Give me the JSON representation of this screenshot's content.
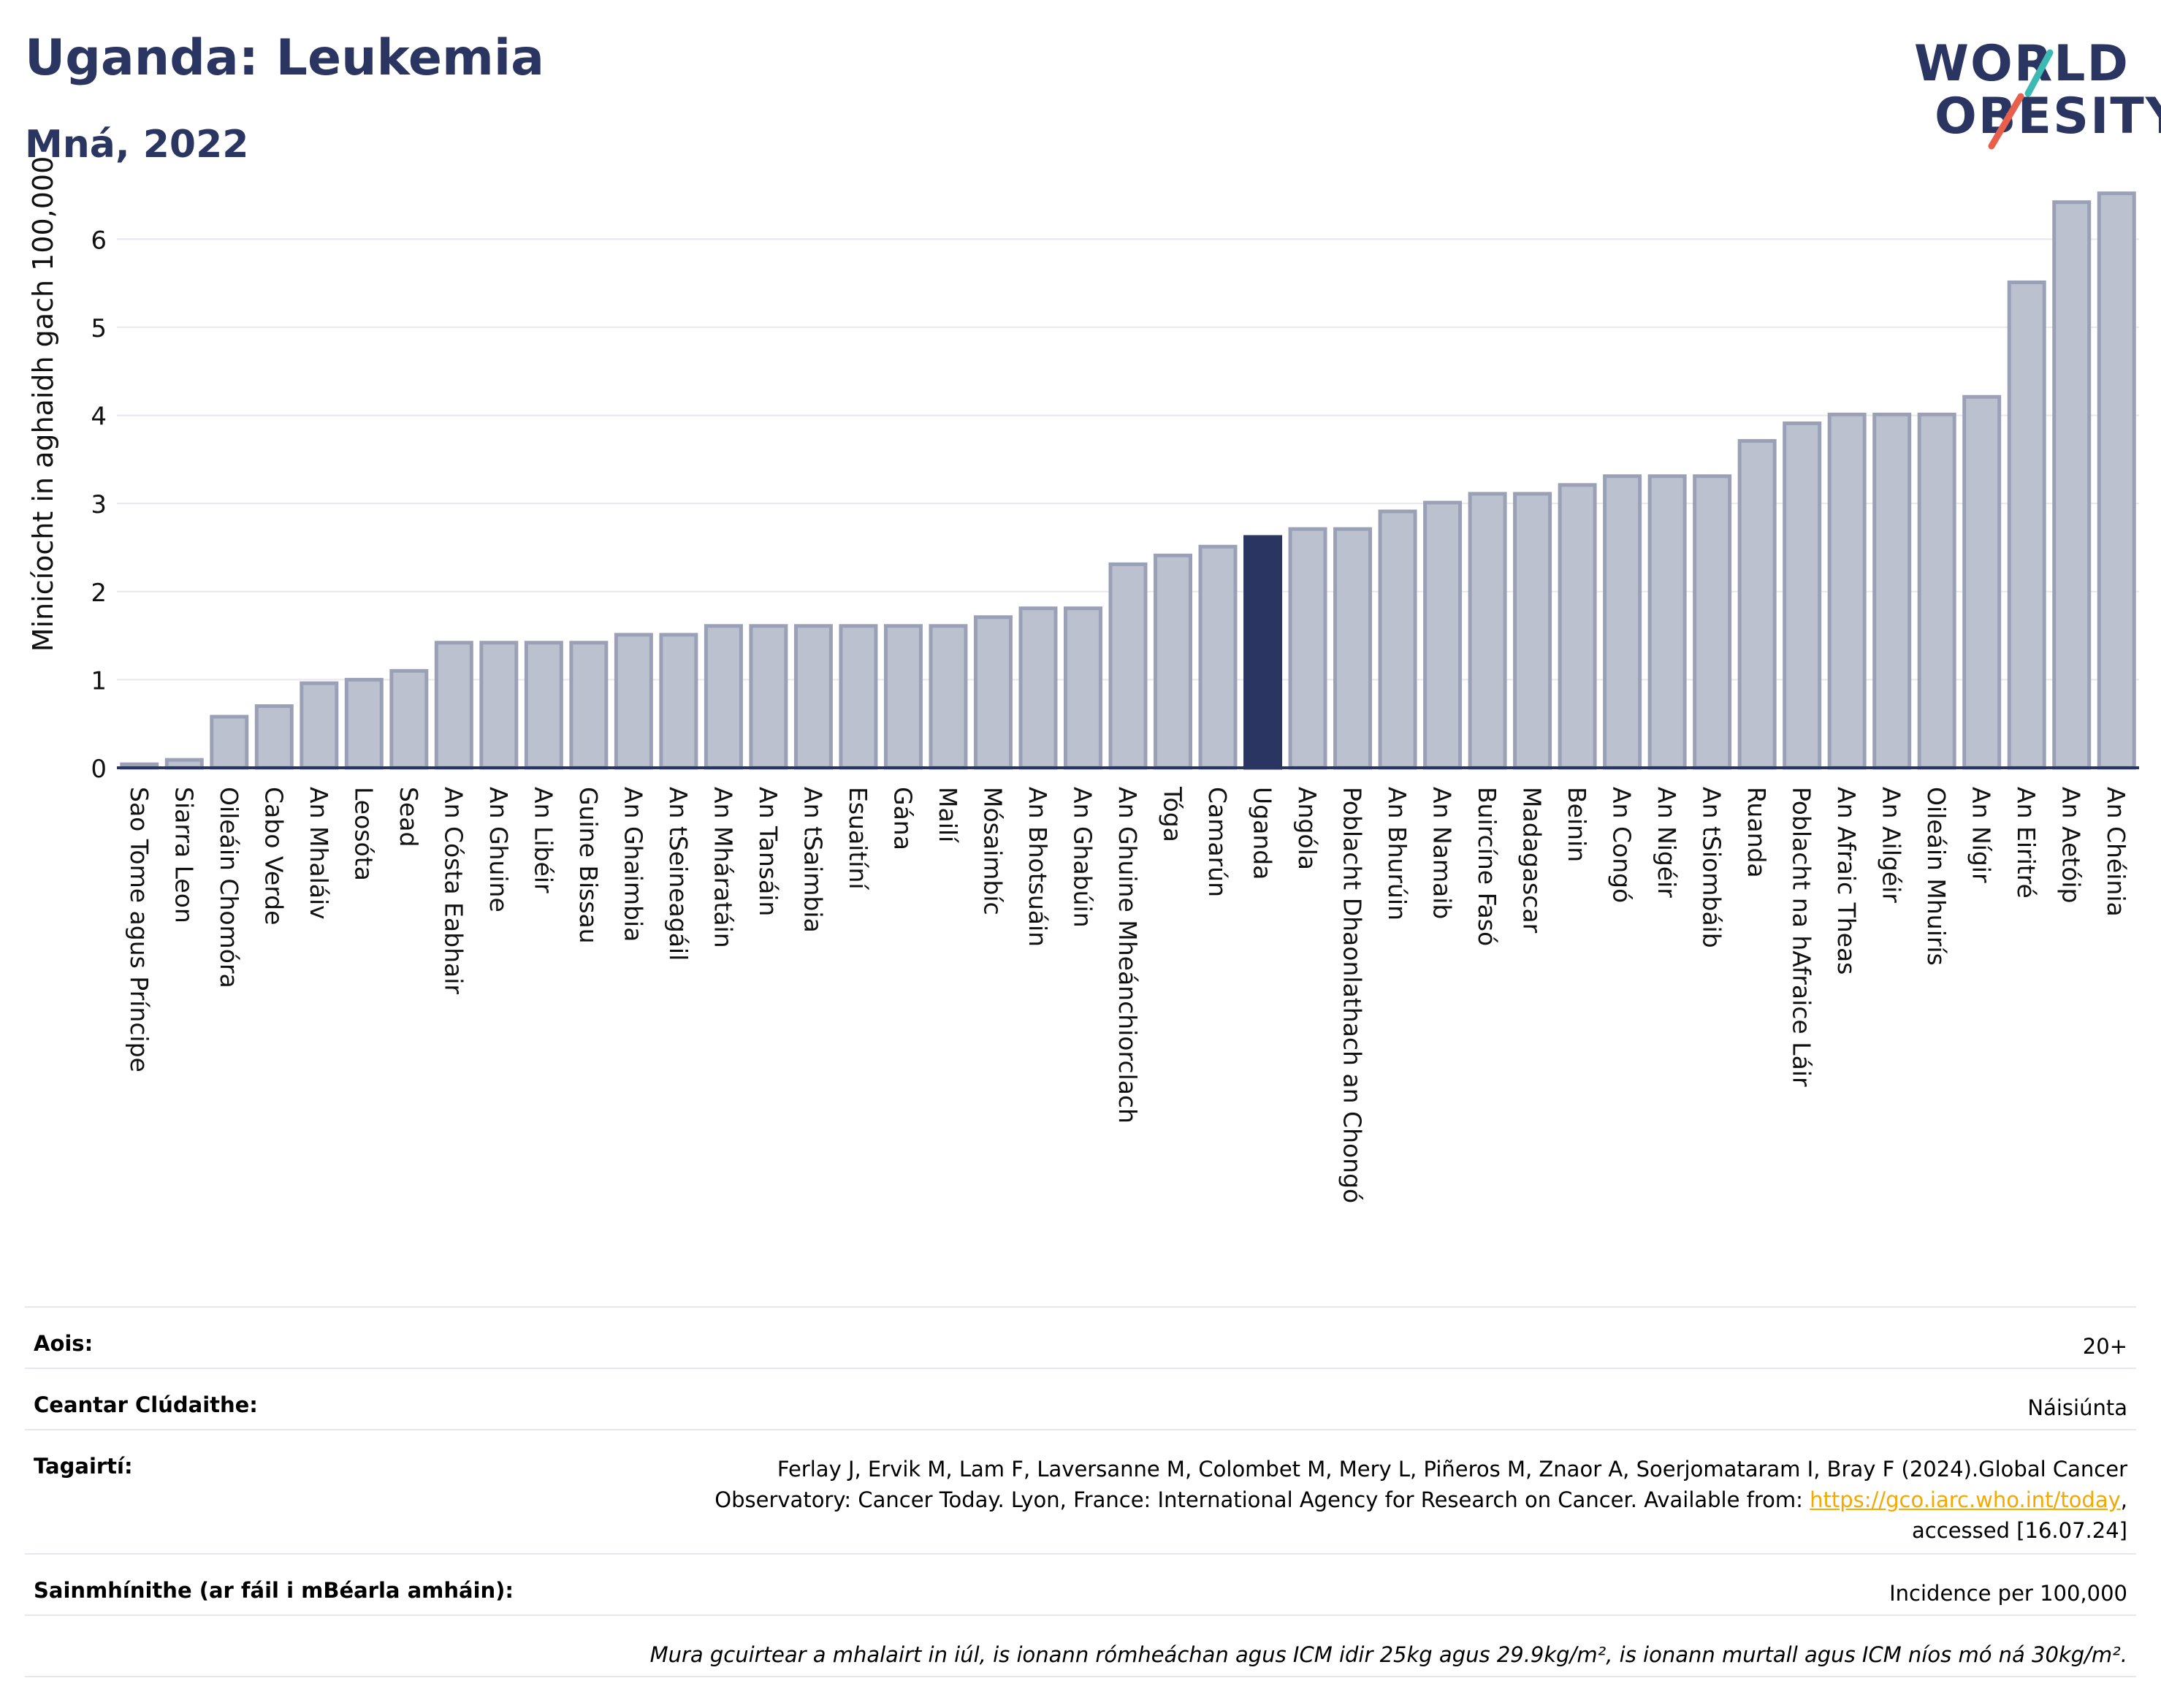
{
  "header": {
    "title": "Uganda: Leukemia",
    "subtitle": "Mná, 2022"
  },
  "logo": {
    "line1": "WORLD",
    "line2": "OBESITY",
    "accent_teal": "#3bb9b2",
    "accent_red": "#e8604c"
  },
  "chart_data": {
    "type": "bar",
    "ylabel": "Minicíocht in aghaidh gach 100,000",
    "ylim": [
      0,
      6.6
    ],
    "yticks": [
      0,
      1,
      2,
      3,
      4,
      5,
      6
    ],
    "grid": true,
    "highlight": "Uganda",
    "colors": {
      "bar": "#bcc1cf",
      "bar_outline": "#9aa1b7",
      "highlight": "#2b3561",
      "grid": "#e8e8ee",
      "axis": "#2b3561"
    },
    "categories": [
      "Sao Tome agus Príncipe",
      "Siarra Leon",
      "Oileáin Chomóra",
      "Cabo Verde",
      "An Mhaláiv",
      "Leosóta",
      "Sead",
      "An Cósta Eabhair",
      "An Ghuine",
      "An Libéir",
      "Guine Bissau",
      "An Ghaimbia",
      "An tSeineagáil",
      "An Mháratáin",
      "An Tansáin",
      "An tSaimbia",
      "Esuaitíní",
      "Gána",
      "Mailí",
      "Mósaimbíc",
      "An Bhotsuáin",
      "An Ghabúin",
      "An Ghuine Mheánchiorclach",
      "Tóga",
      "Camarún",
      "Uganda",
      "Angóla",
      "Poblacht Dhaonlathach an Chongó",
      "An Bhurúin",
      "An Namaib",
      "Buircíne Fasó",
      "Madagascar",
      "Beinin",
      "An Congó",
      "An Nigéir",
      "An tSiombáib",
      "Ruanda",
      "Poblacht na hAfraice Láir",
      "An Afraic Theas",
      "An Ailgéir",
      "Oileáin Mhuirís",
      "An Nígir",
      "An Eiritré",
      "An Aetóip",
      "An Chéinia"
    ],
    "values": [
      0.04,
      0.09,
      0.58,
      0.7,
      0.96,
      1.0,
      1.1,
      1.42,
      1.42,
      1.42,
      1.42,
      1.51,
      1.51,
      1.61,
      1.61,
      1.61,
      1.61,
      1.61,
      1.61,
      1.71,
      1.81,
      1.81,
      2.31,
      2.41,
      2.51,
      2.62,
      2.71,
      2.71,
      2.91,
      3.01,
      3.11,
      3.11,
      3.21,
      3.31,
      3.31,
      3.31,
      3.71,
      3.91,
      4.01,
      4.01,
      4.01,
      4.21,
      5.51,
      6.42,
      6.52
    ]
  },
  "info": {
    "age_label": "Aois:",
    "age_value": "20+",
    "coverage_label": "Ceantar Clúdaithe:",
    "coverage_value": "Náisiúnta",
    "references_label": "Tagairtí:",
    "references_line1": "Ferlay J, Ervik M, Lam F, Laversanne M, Colombet M, Mery L, Piñeros M, Znaor A, Soerjomataram I, Bray F (2024).Global Cancer",
    "references_line2": "Observatory: Cancer Today. Lyon, France: International Agency for Research on Cancer. Available from: ",
    "references_link": "https://gco.iarc.who.int/today",
    "references_line3": "accessed [16.07.24]",
    "definitions_label": "Sainmhínithe (ar fáil i mBéarla amháin):",
    "definitions_value": "Incidence per 100,000",
    "note": "Mura gcuirtear a mhalairt in iúl, is ionann rómheáchan agus ICM idir 25kg agus 29.9kg/m², is ionann murtall agus ICM níos mó ná 30kg/m²."
  }
}
